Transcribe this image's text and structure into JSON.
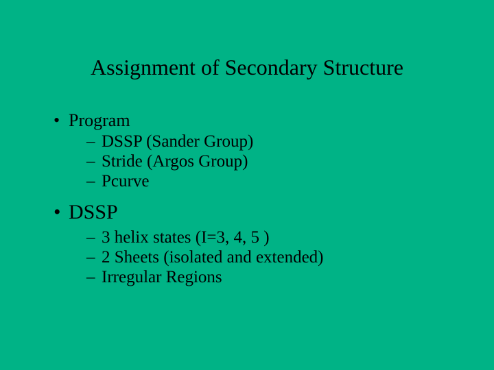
{
  "slide": {
    "background_color": "#00b386",
    "text_color": "#000000",
    "font_family": "Times New Roman",
    "title": "Assignment of Secondary Structure",
    "title_fontsize": 32,
    "title_align": "center",
    "body": {
      "level1_fontsize": 26,
      "level1_big_fontsize": 30,
      "level2_fontsize": 25,
      "bullet_glyph": "•",
      "dash_glyph": "–",
      "items": [
        {
          "label": "Program",
          "size": "normal",
          "children": [
            {
              "label": "DSSP (Sander Group)"
            },
            {
              "label": "Stride (Argos Group)"
            },
            {
              "label": "Pcurve"
            }
          ]
        },
        {
          "label": "DSSP",
          "size": "big",
          "children": [
            {
              "label": "3 helix states (I=3, 4, 5 )"
            },
            {
              "label": "2 Sheets (isolated and extended)"
            },
            {
              "label": "Irregular Regions"
            }
          ]
        }
      ]
    }
  }
}
